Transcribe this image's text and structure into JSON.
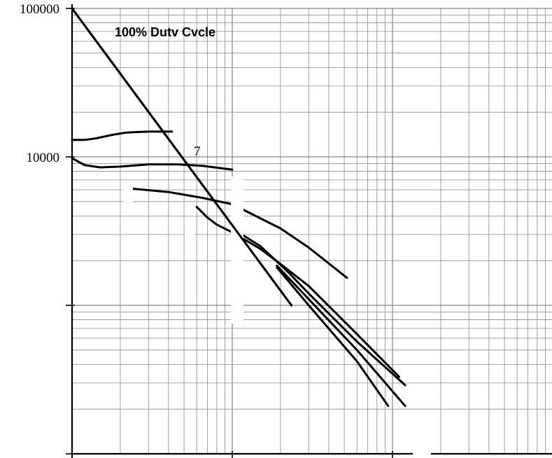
{
  "chart_data": {
    "type": "line",
    "title": "",
    "xlabel": "",
    "ylabel": "",
    "x_scale": "log",
    "y_scale": "log",
    "xlim": [
      1,
      100
    ],
    "ylim": [
      100,
      100000
    ],
    "grid": true,
    "y_tick_labels": [
      {
        "value": 100000,
        "label": "100000"
      },
      {
        "value": 10000,
        "label": "10000"
      }
    ],
    "annotations": [
      {
        "text": "100% Dutv Cvcle",
        "x": 3,
        "y": 70000
      },
      {
        "text": "7",
        "x": 8.0,
        "y": 10500
      }
    ],
    "series": [
      {
        "points": [
          [
            1,
            100000
          ],
          [
            23.4,
            1000
          ]
        ]
      },
      {
        "points": [
          [
            1,
            13000
          ],
          [
            1.2,
            13000
          ],
          [
            1.4,
            13300
          ],
          [
            1.8,
            14100
          ],
          [
            2.2,
            14600
          ],
          [
            3.0,
            14800
          ],
          [
            4.2,
            14800
          ]
        ]
      },
      {
        "points": [
          [
            1,
            9800
          ],
          [
            1.2,
            8800
          ],
          [
            1.5,
            8500
          ],
          [
            2.0,
            8600
          ],
          [
            3.0,
            8900
          ],
          [
            4.5,
            8900
          ],
          [
            6.5,
            8700
          ],
          [
            10.0,
            8200
          ]
        ]
      },
      {
        "points": [
          [
            2.4,
            6100
          ],
          [
            4.0,
            5800
          ],
          [
            6.5,
            5300
          ],
          [
            10.0,
            4800
          ],
          [
            14.0,
            4000
          ],
          [
            20.0,
            3300
          ],
          [
            30.0,
            2450
          ],
          [
            52.0,
            1530
          ]
        ]
      },
      {
        "points": [
          [
            6.0,
            4600
          ],
          [
            7.0,
            3900
          ],
          [
            8.0,
            3500
          ],
          [
            10.0,
            3100
          ],
          [
            15.0,
            2400
          ],
          [
            20.0,
            1900
          ],
          [
            30.0,
            1350
          ],
          [
            60.0,
            640
          ],
          [
            110.0,
            330
          ]
        ]
      },
      {
        "points": [
          [
            10.0,
            3300
          ],
          [
            15.0,
            2500
          ],
          [
            22.0,
            1700
          ],
          [
            30.0,
            1200
          ],
          [
            60.0,
            570
          ],
          [
            120.0,
            290
          ]
        ]
      },
      {
        "points": [
          [
            19.0,
            1850
          ],
          [
            30.0,
            1100
          ],
          [
            60.0,
            500
          ],
          [
            120.0,
            210
          ]
        ]
      },
      {
        "points": [
          [
            19.0,
            1800
          ],
          [
            30.0,
            1000
          ],
          [
            60.0,
            420
          ],
          [
            94.0,
            210
          ]
        ]
      }
    ]
  }
}
